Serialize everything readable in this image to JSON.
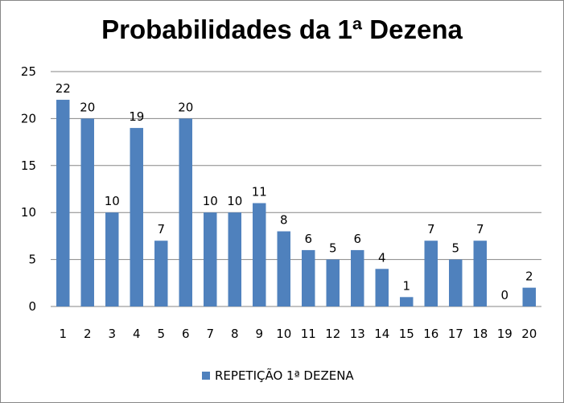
{
  "chart_data": {
    "type": "bar",
    "title": "Probabilidades da 1ª Dezena",
    "categories": [
      "1",
      "2",
      "3",
      "4",
      "5",
      "6",
      "7",
      "8",
      "9",
      "10",
      "11",
      "12",
      "13",
      "14",
      "15",
      "16",
      "17",
      "18",
      "19",
      "20"
    ],
    "series": [
      {
        "name": "REPETIÇÃO 1ª DEZENA",
        "values": [
          22,
          20,
          10,
          19,
          7,
          20,
          10,
          10,
          11,
          8,
          6,
          5,
          6,
          4,
          1,
          7,
          5,
          7,
          0,
          2
        ],
        "color": "#4f81bd"
      }
    ],
    "data_labels": [
      "22",
      "20",
      "10",
      "19",
      "7",
      "20",
      "10",
      "10",
      "11",
      "8",
      "6",
      "5",
      "6",
      "4",
      "1",
      "7",
      "5",
      "7",
      "0",
      "2"
    ],
    "y_ticks": [
      "0",
      "5",
      "10",
      "15",
      "20",
      "25"
    ],
    "ylim": [
      0,
      25
    ],
    "grid": true,
    "legend_position": "bottom"
  }
}
